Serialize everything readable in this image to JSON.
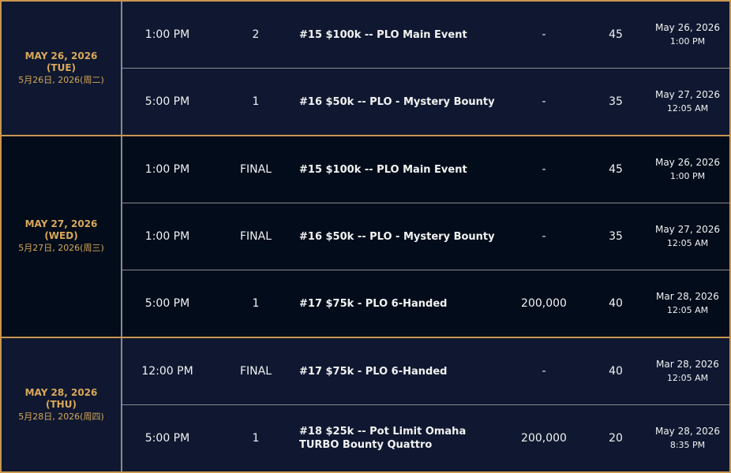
{
  "colors": {
    "accent_gold": "#c9964e",
    "bg_dark_navy": "#0f1830",
    "bg_black_navy": "#020c1a",
    "divider": "#8a8a8a"
  },
  "groups": [
    {
      "date_en": "MAY 26, 2026 (TUE)",
      "date_zh": "5月26日, 2026(周二)",
      "rows": [
        {
          "time": "1:00 PM",
          "day": "2",
          "event": "#15 $100k -- PLO Main Event",
          "guarantee": "-",
          "levels": "45",
          "late_date": "May 26, 2026",
          "late_time": "1:00 PM"
        },
        {
          "time": "5:00 PM",
          "day": "1",
          "event": "#16 $50k -- PLO - Mystery Bounty",
          "guarantee": "-",
          "levels": "35",
          "late_date": "May 27, 2026",
          "late_time": "12:05 AM"
        }
      ]
    },
    {
      "date_en": "MAY 27, 2026 (WED)",
      "date_zh": "5月27日, 2026(周三)",
      "rows": [
        {
          "time": "1:00 PM",
          "day": "FINAL",
          "event": "#15 $100k -- PLO Main Event",
          "guarantee": "-",
          "levels": "45",
          "late_date": "May 26, 2026",
          "late_time": "1:00 PM"
        },
        {
          "time": "1:00 PM",
          "day": "FINAL",
          "event": "#16 $50k -- PLO - Mystery Bounty",
          "guarantee": "-",
          "levels": "35",
          "late_date": "May 27, 2026",
          "late_time": "12:05 AM"
        },
        {
          "time": "5:00 PM",
          "day": "1",
          "event": "#17 $75k - PLO 6-Handed",
          "guarantee": "200,000",
          "levels": "40",
          "late_date": "Mar 28, 2026",
          "late_time": "12:05 AM"
        }
      ]
    },
    {
      "date_en": "MAY 28, 2026 (THU)",
      "date_zh": "5月28日, 2026(周四)",
      "rows": [
        {
          "time": "12:00 PM",
          "day": "FINAL",
          "event": "#17 $75k - PLO 6-Handed",
          "guarantee": "-",
          "levels": "40",
          "late_date": "Mar 28, 2026",
          "late_time": "12:05 AM"
        },
        {
          "time": "5:00 PM",
          "day": "1",
          "event": "#18 $25k -- Pot Limit Omaha TURBO Bounty Quattro",
          "guarantee": "200,000",
          "levels": "20",
          "late_date": "May 28, 2026",
          "late_time": "8:35 PM"
        }
      ]
    }
  ]
}
